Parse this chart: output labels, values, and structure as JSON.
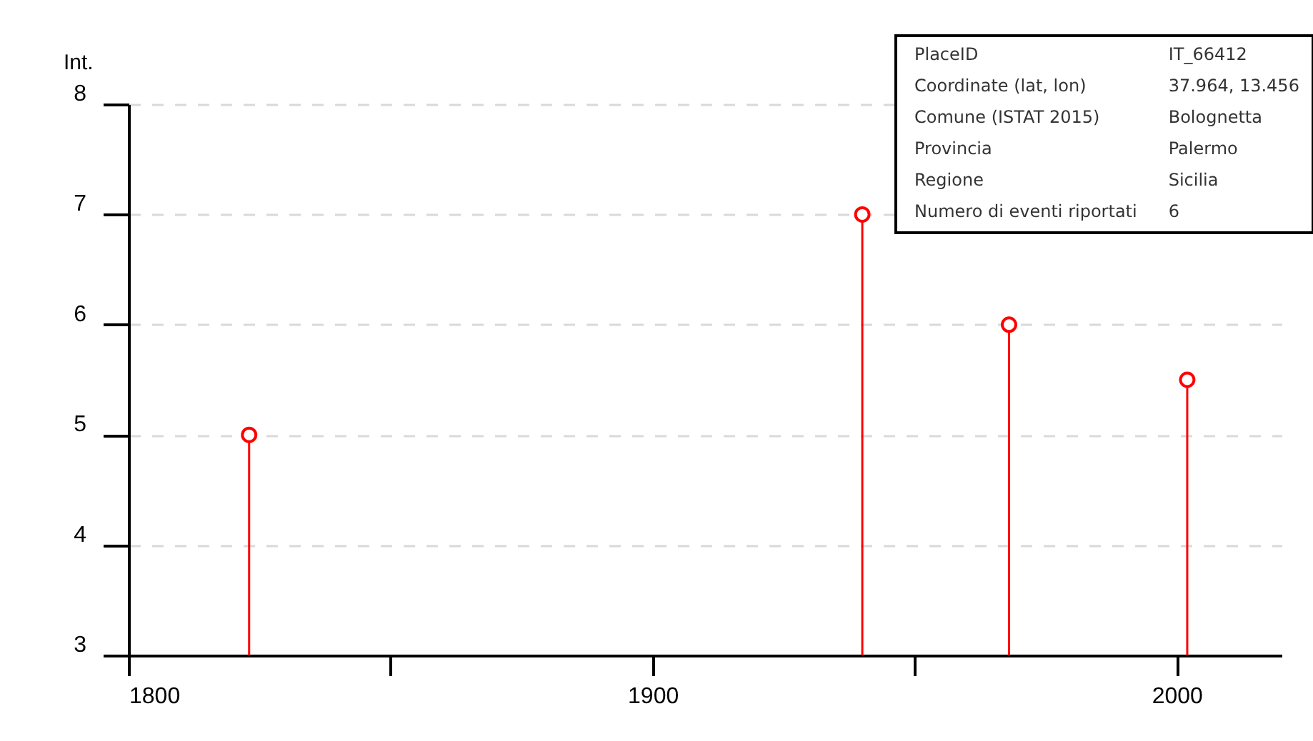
{
  "chart_data": {
    "type": "lollipop",
    "ylabel": "Int.",
    "x": [
      1823,
      1940,
      1968,
      2002
    ],
    "series": [
      {
        "color": "#ff0000",
        "values": [
          5,
          7,
          6,
          5.5
        ]
      }
    ],
    "xlim": [
      1800,
      2020
    ],
    "xticks": [
      1800,
      {
        "value": 1850,
        "label": null
      },
      1900,
      {
        "value": 1950,
        "label": null
      },
      2000
    ],
    "ylim": [
      3,
      8
    ],
    "yticks": [
      3,
      4,
      5,
      6,
      7,
      8
    ],
    "grid": "y",
    "marker": "circle",
    "annotations": [
      "PlaceID",
      "IT_66412",
      "Coordinate (lat, lon)",
      "37.964, 13.456",
      "Comune (ISTAT 2015)",
      "Bolognetta",
      "Provincia",
      "Palermo",
      "Regione",
      "Sicilia",
      "Numero di eventi riportati",
      "6"
    ]
  }
}
